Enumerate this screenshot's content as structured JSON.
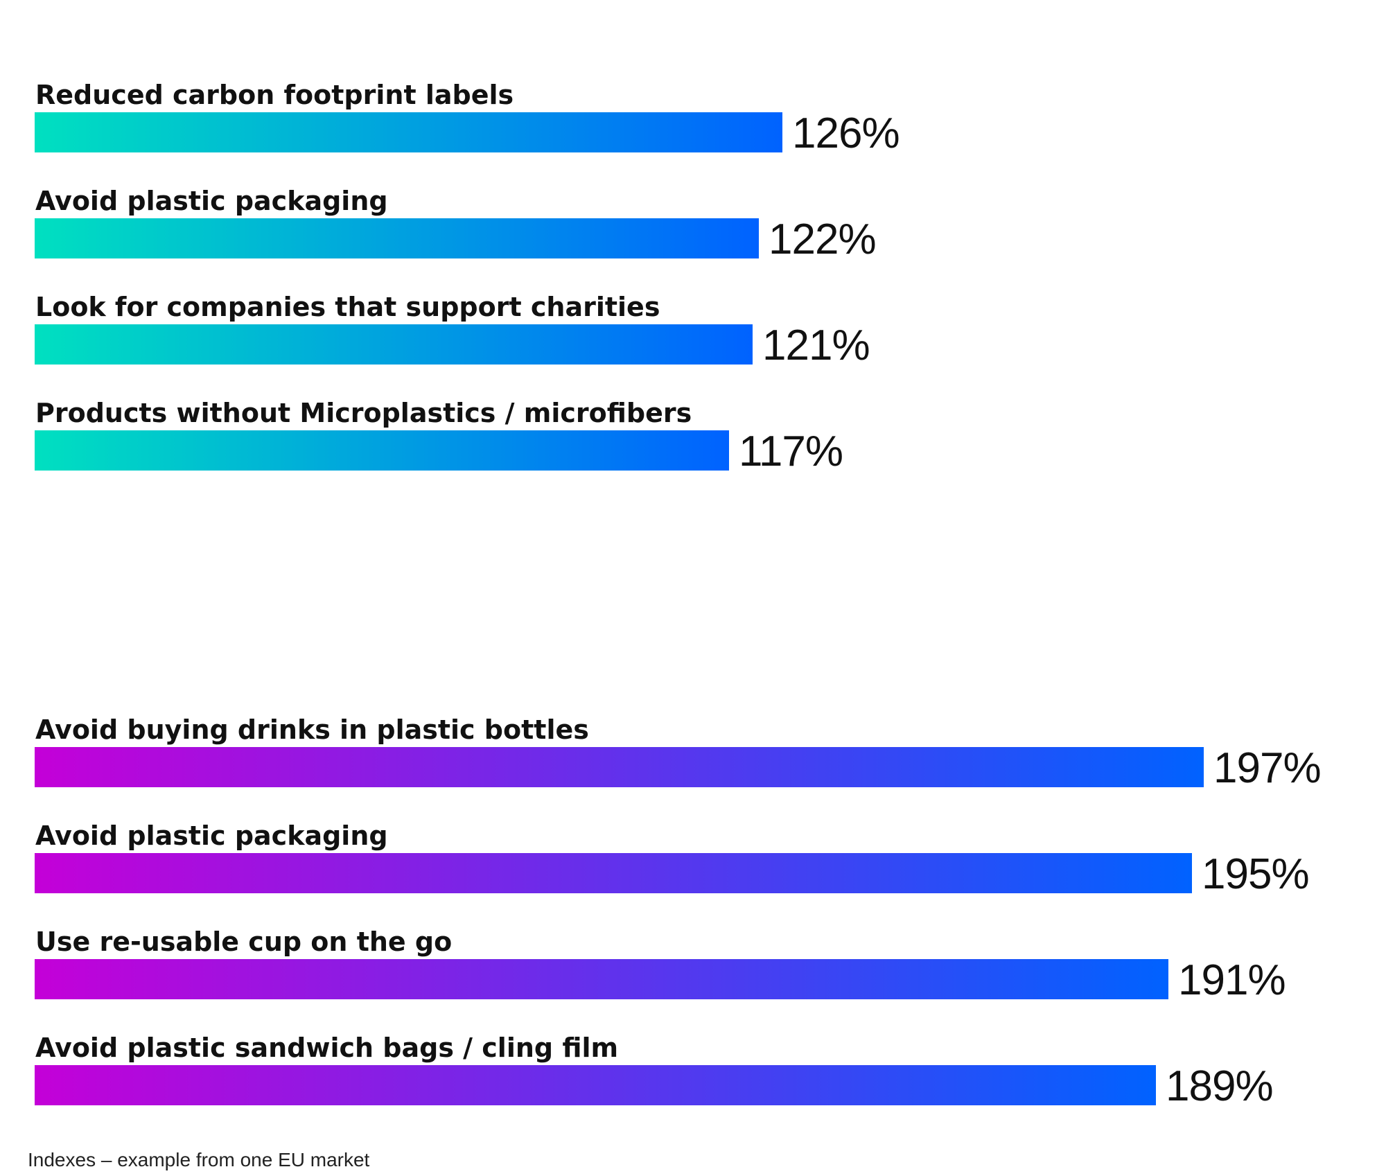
{
  "chart_data": [
    {
      "type": "bar",
      "orientation": "horizontal",
      "categories": [
        "Reduced carbon footprint labels",
        "Avoid plastic packaging",
        "Look for companies that support charities",
        "Products without Microplastics / microfibers"
      ],
      "values": [
        126,
        122,
        121,
        117
      ],
      "value_labels": [
        "126%",
        "122%",
        "121%",
        "117%"
      ],
      "gradient": [
        "#00E0C0",
        "#0062FF"
      ]
    },
    {
      "type": "bar",
      "orientation": "horizontal",
      "categories": [
        "Avoid buying drinks in plastic bottles",
        "Avoid plastic packaging",
        "Use re-usable cup on the go",
        "Avoid plastic sandwich bags / cling film"
      ],
      "values": [
        197,
        195,
        191,
        189
      ],
      "value_labels": [
        "197%",
        "195%",
        "191%",
        "189%"
      ],
      "gradient": [
        "#C400D8",
        "#0062FF"
      ]
    }
  ],
  "footnote": "Indexes – example from one EU market"
}
